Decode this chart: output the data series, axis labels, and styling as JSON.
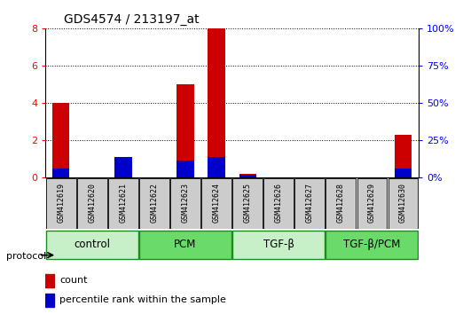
{
  "title": "GDS4574 / 213197_at",
  "samples": [
    "GSM412619",
    "GSM412620",
    "GSM412621",
    "GSM412622",
    "GSM412623",
    "GSM412624",
    "GSM412625",
    "GSM412626",
    "GSM412627",
    "GSM412628",
    "GSM412629",
    "GSM412630"
  ],
  "count_values": [
    4.0,
    0.0,
    0.3,
    0.0,
    5.0,
    8.0,
    0.2,
    0.0,
    0.0,
    0.0,
    0.0,
    2.3
  ],
  "percentile_values": [
    6.25,
    0.0,
    13.75,
    0.0,
    11.25,
    13.75,
    1.875,
    0.0,
    0.0,
    0.0,
    0.0,
    6.25
  ],
  "ylim_left": [
    0,
    8
  ],
  "ylim_right": [
    0,
    100
  ],
  "yticks_left": [
    0,
    2,
    4,
    6,
    8
  ],
  "yticks_right": [
    0,
    25,
    50,
    75,
    100
  ],
  "ytick_labels_right": [
    "0%",
    "25%",
    "50%",
    "75%",
    "100%"
  ],
  "groups": [
    {
      "label": "control",
      "start": 0,
      "end": 3,
      "color": "#c8f0c8"
    },
    {
      "label": "PCM",
      "start": 3,
      "end": 6,
      "color": "#6ada6a"
    },
    {
      "label": "TGF-β",
      "start": 6,
      "end": 9,
      "color": "#c8f0c8"
    },
    {
      "label": "TGF-β/PCM",
      "start": 9,
      "end": 12,
      "color": "#6ada6a"
    }
  ],
  "count_color": "#cc0000",
  "percentile_color": "#0000cc",
  "sample_box_color": "#cccccc",
  "legend_count_label": "count",
  "legend_percentile_label": "percentile rank within the sample",
  "protocol_label": "protocol"
}
